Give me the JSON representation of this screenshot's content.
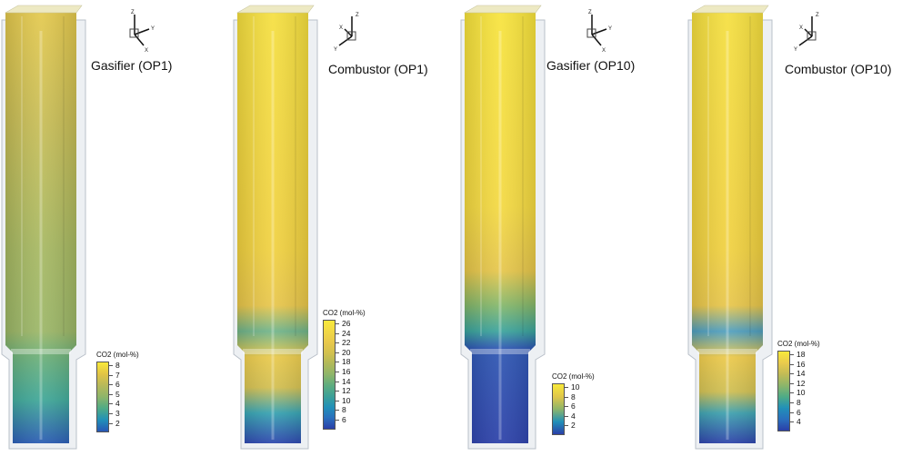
{
  "panels": [
    {
      "title": "Gasifier (OP1)",
      "variant": "gasifier",
      "legend": {
        "title": "CO2 (mol-%)",
        "ticks": [
          "8",
          "7",
          "6",
          "5",
          "4",
          "3",
          "2"
        ],
        "colors": [
          "#f8e93a",
          "#e2c445",
          "#b7b95a",
          "#8db56a",
          "#4fab86",
          "#2190b8",
          "#2756b5"
        ]
      }
    },
    {
      "title": "Combustor (OP1)",
      "variant": "combustor",
      "legend": {
        "title": "CO2 (mol-%)",
        "ticks": [
          "26",
          "24",
          "22",
          "20",
          "18",
          "16",
          "14",
          "12",
          "10",
          "8",
          "6"
        ],
        "colors": [
          "#f8e93a",
          "#f1d846",
          "#e8c84c",
          "#d2c14f",
          "#b0b95a",
          "#8db56a",
          "#5dac7f",
          "#3ca098",
          "#2190b8",
          "#2a6fbd",
          "#2a3fa8"
        ]
      }
    },
    {
      "title": "Gasifier (OP10)",
      "variant": "gasifier2",
      "legend": {
        "title": "CO2 (mol-%)",
        "ticks": [
          "10",
          "8",
          "6",
          "4",
          "2"
        ],
        "colors": [
          "#f8e93a",
          "#e0c74a",
          "#8db56a",
          "#2190b8",
          "#2a3fa8"
        ]
      }
    },
    {
      "title": "Combustor (OP10)",
      "variant": "combustor",
      "legend": {
        "title": "CO2 (mol-%)",
        "ticks": [
          "18",
          "16",
          "14",
          "12",
          "10",
          "8",
          "6",
          "4"
        ],
        "colors": [
          "#f8e93a",
          "#eacb4c",
          "#c2bb55",
          "#8db56a",
          "#4fab86",
          "#2190b8",
          "#2a6fbd",
          "#2a3fa8"
        ]
      }
    }
  ],
  "axes_labels": {
    "z": "Z",
    "y": "Y",
    "x": "X"
  }
}
